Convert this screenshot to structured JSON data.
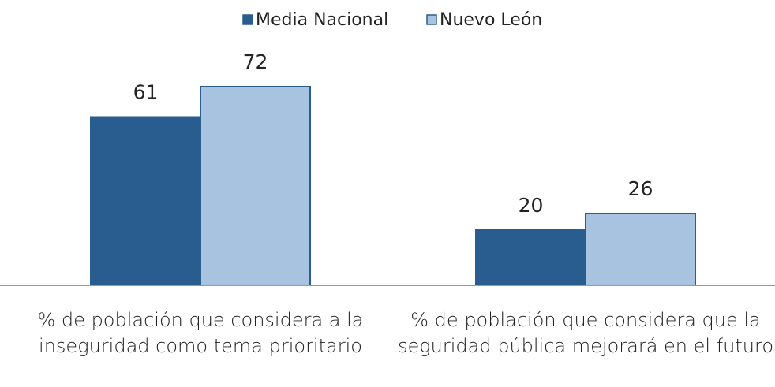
{
  "chart_data": {
    "type": "bar",
    "categories": [
      "% de población que considera a la inseguridad como tema prioritario",
      "% de población que considera que la seguridad pública mejorará en el futuro"
    ],
    "series": [
      {
        "name": "Media Nacional",
        "color": "#2a5d8f",
        "values": [
          61,
          20
        ]
      },
      {
        "name": "Nuevo León",
        "color": "#a7c3e0",
        "values": [
          72,
          26
        ]
      }
    ],
    "ylim": [
      0,
      80
    ],
    "legend": "top"
  }
}
